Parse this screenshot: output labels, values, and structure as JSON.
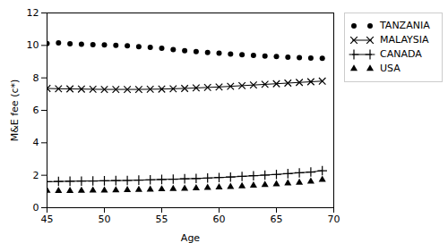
{
  "chart_data": {
    "type": "line",
    "x": [
      45,
      46,
      47,
      48,
      49,
      50,
      51,
      52,
      53,
      54,
      55,
      56,
      57,
      58,
      59,
      60,
      61,
      62,
      63,
      64,
      65,
      66,
      67,
      68,
      69
    ],
    "series": [
      {
        "name": "TANZANIA",
        "type": "scatter",
        "marker": "circle",
        "line_style": "none",
        "color": "black",
        "values": [
          10.12,
          10.15,
          10.1,
          10.08,
          10.05,
          10.03,
          10.0,
          9.98,
          9.92,
          9.88,
          9.82,
          9.75,
          9.68,
          9.62,
          9.57,
          9.52,
          9.47,
          9.42,
          9.38,
          9.35,
          9.32,
          9.28,
          9.25,
          9.22,
          9.2
        ]
      },
      {
        "name": "MALAYSIA",
        "type": "line",
        "marker": "x",
        "line_style": "solid",
        "color": "black",
        "values": [
          7.35,
          7.33,
          7.32,
          7.31,
          7.3,
          7.29,
          7.29,
          7.29,
          7.29,
          7.3,
          7.31,
          7.33,
          7.35,
          7.38,
          7.41,
          7.44,
          7.48,
          7.52,
          7.56,
          7.6,
          7.64,
          7.68,
          7.72,
          7.76,
          7.8
        ]
      },
      {
        "name": "CANADA",
        "type": "line",
        "marker": "plus",
        "line_style": "solid",
        "color": "black",
        "values": [
          1.6,
          1.62,
          1.63,
          1.64,
          1.65,
          1.66,
          1.67,
          1.68,
          1.7,
          1.72,
          1.74,
          1.76,
          1.78,
          1.8,
          1.83,
          1.86,
          1.89,
          1.93,
          1.97,
          2.01,
          2.05,
          2.1,
          2.15,
          2.2,
          2.28
        ]
      },
      {
        "name": "USA",
        "type": "scatter",
        "marker": "triangle",
        "line_style": "none",
        "color": "black",
        "values": [
          1.05,
          1.04,
          1.04,
          1.05,
          1.06,
          1.07,
          1.08,
          1.09,
          1.1,
          1.12,
          1.14,
          1.16,
          1.18,
          1.2,
          1.23,
          1.26,
          1.29,
          1.33,
          1.37,
          1.41,
          1.45,
          1.5,
          1.55,
          1.62,
          1.72
        ]
      }
    ],
    "xlabel": "Age",
    "ylabel": "M&E fee (c*)",
    "xlim": [
      45,
      70
    ],
    "ylim": [
      0,
      12
    ],
    "xticks": [
      45,
      50,
      55,
      60,
      65,
      70
    ],
    "yticks": [
      0,
      2,
      4,
      6,
      8,
      10,
      12
    ],
    "legend": "upper right",
    "grid": false
  }
}
